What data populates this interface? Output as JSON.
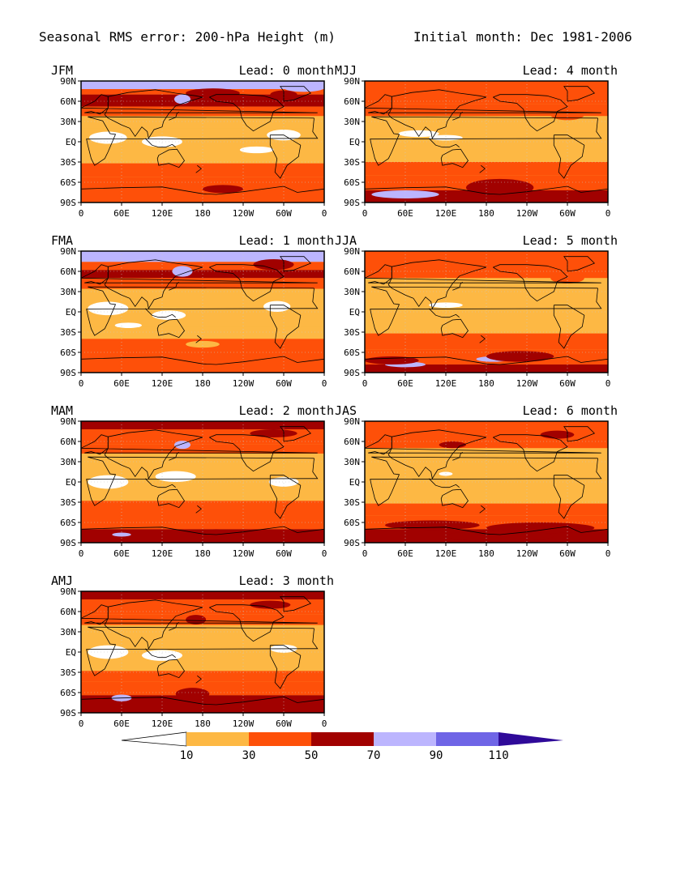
{
  "header": {
    "title": "Seasonal RMS error: 200-hPa Height (m)",
    "initial_month": "Initial month: Dec 1981-2006"
  },
  "axes": {
    "y_ticks": [
      "90N",
      "60N",
      "30N",
      "EQ",
      "30S",
      "60S",
      "90S"
    ],
    "x_ticks": [
      "0",
      "60E",
      "120E",
      "180",
      "120W",
      "60W",
      "0"
    ]
  },
  "colors": {
    "white": "#ffffff",
    "c10_30": "#fdb844",
    "c30_50": "#fe5009",
    "c50_70": "#a10100",
    "c70_90": "#bcb5fe",
    "c90_110": "#6f65e6",
    "c110": "#2f0a99",
    "coast": "#000000"
  },
  "colorbar": {
    "tick_labels": [
      "10",
      "30",
      "50",
      "70",
      "90",
      "110"
    ]
  },
  "chart_data": {
    "type": "heatmap",
    "title": "Seasonal RMS error: 200-hPa Height (m)",
    "subtitle": "Initial month: Dec 1981-2006",
    "variable": "RMS error of 200-hPa geopotential height",
    "unit": "m",
    "contour_levels": [
      10,
      30,
      50,
      70,
      90,
      110
    ],
    "x_range": [
      "0",
      "0"
    ],
    "y_range": [
      "90S",
      "90N"
    ],
    "panels": [
      {
        "season": "JFM",
        "lead": "Lead: 0 month",
        "lead_months": 0,
        "rms_zonal_bands": [
          {
            "lat": "90N",
            "class": "70-90"
          },
          {
            "lat": "60N",
            "class": "30-70"
          },
          {
            "lat": "30N",
            "class": "10-30"
          },
          {
            "lat": "EQ",
            "class": "<10 to 30"
          },
          {
            "lat": "30S",
            "class": "10-30"
          },
          {
            "lat": "60S",
            "class": "30-50"
          },
          {
            "lat": "90S",
            "class": "30-50"
          }
        ]
      },
      {
        "season": "FMA",
        "lead": "Lead: 1 month",
        "lead_months": 1,
        "rms_zonal_bands": [
          {
            "lat": "90N",
            "class": "70-90"
          },
          {
            "lat": "60N",
            "class": "30-70"
          },
          {
            "lat": "30N",
            "class": "10-30"
          },
          {
            "lat": "EQ",
            "class": "<10 to 30"
          },
          {
            "lat": "30S",
            "class": "10-30"
          },
          {
            "lat": "60S",
            "class": "30-50"
          },
          {
            "lat": "90S",
            "class": "30-50"
          }
        ]
      },
      {
        "season": "MAM",
        "lead": "Lead: 2 month",
        "lead_months": 2,
        "rms_zonal_bands": [
          {
            "lat": "90N",
            "class": "50-70"
          },
          {
            "lat": "60N",
            "class": "30-70"
          },
          {
            "lat": "30N",
            "class": "10-30"
          },
          {
            "lat": "EQ",
            "class": "<10 to 30"
          },
          {
            "lat": "30S",
            "class": "10-30"
          },
          {
            "lat": "60S",
            "class": "30-50"
          },
          {
            "lat": "90S",
            "class": "50-90"
          }
        ]
      },
      {
        "season": "AMJ",
        "lead": "Lead: 3 month",
        "lead_months": 3,
        "rms_zonal_bands": [
          {
            "lat": "90N",
            "class": "50-70"
          },
          {
            "lat": "60N",
            "class": "30-70"
          },
          {
            "lat": "30N",
            "class": "10-30"
          },
          {
            "lat": "EQ",
            "class": "<10 to 30"
          },
          {
            "lat": "30S",
            "class": "10-30"
          },
          {
            "lat": "60S",
            "class": "30-50"
          },
          {
            "lat": "90S",
            "class": "50-90"
          }
        ]
      },
      {
        "season": "MJJ",
        "lead": "Lead: 4 month",
        "lead_months": 4,
        "rms_zonal_bands": [
          {
            "lat": "90N",
            "class": "30-50"
          },
          {
            "lat": "60N",
            "class": "30-50"
          },
          {
            "lat": "30N",
            "class": "10-30"
          },
          {
            "lat": "EQ",
            "class": "10-30"
          },
          {
            "lat": "30S",
            "class": "10-30"
          },
          {
            "lat": "60S",
            "class": "30-70"
          },
          {
            "lat": "90S",
            "class": "50-90"
          }
        ]
      },
      {
        "season": "JJA",
        "lead": "Lead: 5 month",
        "lead_months": 5,
        "rms_zonal_bands": [
          {
            "lat": "90N",
            "class": "30-50"
          },
          {
            "lat": "60N",
            "class": "30-50"
          },
          {
            "lat": "30N",
            "class": "10-30"
          },
          {
            "lat": "EQ",
            "class": "10-30"
          },
          {
            "lat": "30S",
            "class": "10-30"
          },
          {
            "lat": "60S",
            "class": "30-70"
          },
          {
            "lat": "90S",
            "class": "50-90"
          }
        ]
      },
      {
        "season": "JAS",
        "lead": "Lead: 6 month",
        "lead_months": 6,
        "rms_zonal_bands": [
          {
            "lat": "90N",
            "class": "30-50"
          },
          {
            "lat": "60N",
            "class": "30-50"
          },
          {
            "lat": "30N",
            "class": "10-30"
          },
          {
            "lat": "EQ",
            "class": "10-30"
          },
          {
            "lat": "30S",
            "class": "10-30"
          },
          {
            "lat": "60S",
            "class": "30-70"
          },
          {
            "lat": "90S",
            "class": "50-70"
          }
        ]
      }
    ]
  }
}
